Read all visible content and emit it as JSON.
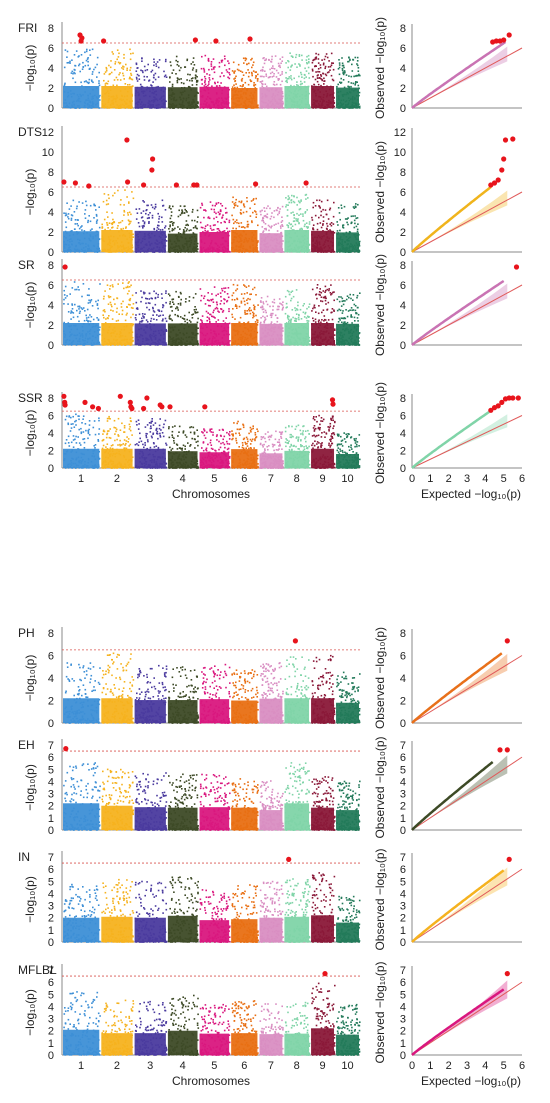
{
  "chrom_colors": [
    "#3d8fd6",
    "#f5b21f",
    "#4a3a9e",
    "#3d4a26",
    "#d9177e",
    "#e86f13",
    "#d98ec2",
    "#80d4a8",
    "#8a1838",
    "#237a5a"
  ],
  "sig_color": "#e8141c",
  "threshold_color": "#d9534f",
  "diag_color": "#e05a5a",
  "chrom_labels": [
    "1",
    "2",
    "3",
    "4",
    "5",
    "6",
    "7",
    "8",
    "9",
    "10"
  ],
  "manhattan_xlabel": "Chromosomes",
  "qq_xlabel": "Expected −log₁₀(p)",
  "qq_ylabel": "Observed −log₁₀(p)",
  "manhattan_ylabel": "−log₁₀(p)",
  "chart_data": [
    {
      "type": "scatter",
      "subtype": "manhattan",
      "trait": "FRI",
      "ylim": [
        0,
        8
      ],
      "yticks": [
        0,
        2,
        4,
        6,
        8
      ],
      "threshold": 6.5,
      "baseline_heights": [
        5.9,
        5.9,
        5.3,
        5.2,
        5.3,
        5.0,
        5.2,
        5.6,
        5.5,
        5.1
      ],
      "significant": [
        [
          1,
          0.47,
          7.3
        ],
        [
          1,
          0.5,
          6.7
        ],
        [
          1,
          0.52,
          7.0
        ],
        [
          2,
          0.1,
          6.7
        ],
        [
          4,
          0.9,
          6.8
        ],
        [
          5,
          0.55,
          6.7
        ],
        [
          6,
          0.7,
          6.9
        ]
      ]
    },
    {
      "type": "scatter",
      "subtype": "qq",
      "trait": "FRI",
      "xlim": [
        0,
        6
      ],
      "ylim": [
        0,
        8
      ],
      "yticks": [
        0,
        2,
        4,
        6,
        8
      ],
      "point_color": "#c973b3",
      "observed_end": [
        5.1,
        6.6
      ],
      "significant_points": [
        [
          4.4,
          6.6
        ],
        [
          4.6,
          6.7
        ],
        [
          4.8,
          6.7
        ],
        [
          5.0,
          6.8
        ],
        [
          5.3,
          7.3
        ]
      ]
    },
    {
      "type": "scatter",
      "subtype": "manhattan",
      "trait": "DTS",
      "ylim": [
        0,
        12
      ],
      "yticks": [
        0,
        2,
        4,
        6,
        8,
        10,
        12
      ],
      "threshold": 6.5,
      "baseline_heights": [
        5.2,
        6.2,
        5.3,
        4.6,
        5.0,
        5.5,
        4.7,
        5.8,
        5.3,
        4.9
      ],
      "significant": [
        [
          1,
          0.05,
          7.0
        ],
        [
          1,
          0.35,
          6.9
        ],
        [
          1,
          0.7,
          6.6
        ],
        [
          2,
          0.8,
          11.2
        ],
        [
          2,
          0.82,
          7.0
        ],
        [
          3,
          0.3,
          6.7
        ],
        [
          3,
          0.55,
          8.2
        ],
        [
          3,
          0.57,
          9.3
        ],
        [
          4,
          0.3,
          6.7
        ],
        [
          4,
          0.85,
          6.7
        ],
        [
          4,
          0.95,
          6.7
        ],
        [
          6,
          0.9,
          6.8
        ],
        [
          8,
          0.85,
          6.9
        ]
      ]
    },
    {
      "type": "scatter",
      "subtype": "qq",
      "trait": "DTS",
      "xlim": [
        0,
        6
      ],
      "ylim": [
        0,
        12
      ],
      "yticks": [
        0,
        2,
        4,
        6,
        8,
        10,
        12
      ],
      "point_color": "#f0b41c",
      "observed_end": [
        4.3,
        6.5
      ],
      "significant_points": [
        [
          4.3,
          6.7
        ],
        [
          4.5,
          6.9
        ],
        [
          4.7,
          7.2
        ],
        [
          4.9,
          8.2
        ],
        [
          5.0,
          9.3
        ],
        [
          5.1,
          11.2
        ],
        [
          5.5,
          11.3
        ]
      ]
    },
    {
      "type": "scatter",
      "subtype": "manhattan",
      "trait": "SR",
      "ylim": [
        0,
        8
      ],
      "yticks": [
        0,
        2,
        4,
        6,
        8
      ],
      "threshold": 6.5,
      "baseline_heights": [
        6.3,
        6.4,
        5.4,
        5.4,
        5.8,
        6.2,
        5.3,
        5.6,
        6.1,
        5.3
      ],
      "significant": [
        [
          1,
          0.08,
          7.8
        ]
      ]
    },
    {
      "type": "scatter",
      "subtype": "qq",
      "trait": "SR",
      "xlim": [
        0,
        6
      ],
      "ylim": [
        0,
        8
      ],
      "yticks": [
        0,
        2,
        4,
        6,
        8
      ],
      "point_color": "#c973b3",
      "observed_end": [
        5.0,
        6.4
      ],
      "significant_points": [
        [
          5.7,
          7.8
        ]
      ]
    },
    {
      "type": "scatter",
      "subtype": "manhattan",
      "trait": "SSR",
      "ylim": [
        0,
        8
      ],
      "yticks": [
        0,
        2,
        4,
        6,
        8
      ],
      "threshold": 6.5,
      "baseline_heights": [
        6.3,
        6.2,
        5.7,
        4.8,
        4.5,
        5.4,
        4.2,
        4.9,
        6.0,
        4.0
      ],
      "significant": [
        [
          1,
          0.05,
          8.2
        ],
        [
          1,
          0.07,
          7.5
        ],
        [
          1,
          0.08,
          7.2
        ],
        [
          1,
          0.6,
          7.5
        ],
        [
          1,
          0.8,
          7.0
        ],
        [
          1,
          0.95,
          6.8
        ],
        [
          2,
          0.6,
          8.2
        ],
        [
          2,
          0.9,
          7.5
        ],
        [
          2,
          0.92,
          7.0
        ],
        [
          2,
          0.95,
          6.8
        ],
        [
          3,
          0.3,
          6.8
        ],
        [
          3,
          0.4,
          8.0
        ],
        [
          3,
          0.8,
          7.2
        ],
        [
          3,
          0.85,
          7.0
        ],
        [
          4,
          0.1,
          7.0
        ],
        [
          5,
          0.2,
          7.0
        ],
        [
          9,
          0.9,
          7.8
        ],
        [
          9,
          0.92,
          7.3
        ]
      ]
    },
    {
      "type": "scatter",
      "subtype": "qq",
      "trait": "SSR",
      "xlim": [
        0,
        6
      ],
      "ylim": [
        0,
        8
      ],
      "yticks": [
        0,
        2,
        4,
        6,
        8
      ],
      "point_color": "#80d4a8",
      "observed_end": [
        4.2,
        6.4
      ],
      "significant_points": [
        [
          4.3,
          6.6
        ],
        [
          4.5,
          6.9
        ],
        [
          4.7,
          7.1
        ],
        [
          4.9,
          7.5
        ],
        [
          5.1,
          7.9
        ],
        [
          5.3,
          8.1
        ],
        [
          5.5,
          8.2
        ],
        [
          5.8,
          8.4
        ]
      ]
    },
    {
      "type": "scatter",
      "subtype": "manhattan",
      "trait": "PH",
      "ylim": [
        0,
        8
      ],
      "yticks": [
        0,
        2,
        4,
        6,
        8
      ],
      "threshold": 6.5,
      "baseline_heights": [
        5.7,
        6.2,
        5.1,
        5.1,
        5.3,
        5.0,
        5.4,
        6.0,
        6.1,
        4.5
      ],
      "significant": [
        [
          8,
          0.45,
          7.3
        ]
      ]
    },
    {
      "type": "scatter",
      "subtype": "qq",
      "trait": "PH",
      "xlim": [
        0,
        6
      ],
      "ylim": [
        0,
        8
      ],
      "yticks": [
        0,
        2,
        4,
        6,
        8
      ],
      "point_color": "#e8701a",
      "observed_end": [
        4.9,
        6.2
      ],
      "significant_points": [
        [
          5.2,
          7.3
        ]
      ]
    },
    {
      "type": "scatter",
      "subtype": "manhattan",
      "trait": "EH",
      "ylim": [
        0,
        7
      ],
      "yticks": [
        0,
        1,
        2,
        3,
        4,
        5,
        6,
        7
      ],
      "threshold": 6.5,
      "baseline_heights": [
        5.6,
        5.0,
        4.7,
        4.6,
        4.7,
        4.6,
        4.1,
        5.6,
        4.6,
        4.1
      ],
      "significant": [
        [
          1,
          0.1,
          6.7
        ]
      ]
    },
    {
      "type": "scatter",
      "subtype": "qq",
      "trait": "EH",
      "xlim": [
        0,
        6
      ],
      "ylim": [
        0,
        7
      ],
      "yticks": [
        0,
        1,
        2,
        3,
        4,
        5,
        6,
        7
      ],
      "point_color": "#3d4a26",
      "observed_end": [
        4.4,
        5.6
      ],
      "significant_points": [
        [
          4.8,
          6.6
        ],
        [
          5.2,
          6.6
        ]
      ]
    },
    {
      "type": "scatter",
      "subtype": "manhattan",
      "trait": "IN",
      "ylim": [
        0,
        7
      ],
      "yticks": [
        0,
        1,
        2,
        3,
        4,
        5,
        6,
        7
      ],
      "threshold": 6.5,
      "baseline_heights": [
        5.0,
        5.2,
        5.0,
        5.4,
        4.5,
        4.7,
        5.0,
        5.2,
        5.7,
        4.0
      ],
      "significant": [
        [
          8,
          0.2,
          6.8
        ]
      ]
    },
    {
      "type": "scatter",
      "subtype": "qq",
      "trait": "IN",
      "xlim": [
        0,
        6
      ],
      "ylim": [
        0,
        7
      ],
      "yticks": [
        0,
        1,
        2,
        3,
        4,
        5,
        6,
        7
      ],
      "point_color": "#f5b21f",
      "observed_end": [
        5.0,
        5.9
      ],
      "significant_points": [
        [
          5.3,
          6.8
        ]
      ]
    },
    {
      "type": "scatter",
      "subtype": "manhattan",
      "trait": "MFLBL",
      "ylim": [
        0,
        7
      ],
      "yticks": [
        0,
        1,
        2,
        3,
        4,
        5,
        6,
        7
      ],
      "threshold": 6.5,
      "baseline_heights": [
        5.2,
        4.5,
        4.5,
        5.0,
        4.4,
        4.5,
        4.3,
        4.4,
        5.9,
        4.2
      ],
      "significant": [
        [
          9,
          0.6,
          6.7
        ]
      ]
    },
    {
      "type": "scatter",
      "subtype": "qq",
      "trait": "MFLBL",
      "xlim": [
        0,
        6
      ],
      "ylim": [
        0,
        7
      ],
      "yticks": [
        0,
        1,
        2,
        3,
        4,
        5,
        6,
        7
      ],
      "point_color": "#d9177e",
      "observed_end": [
        5.0,
        5.4
      ],
      "significant_points": [
        [
          5.2,
          6.7
        ]
      ]
    }
  ]
}
